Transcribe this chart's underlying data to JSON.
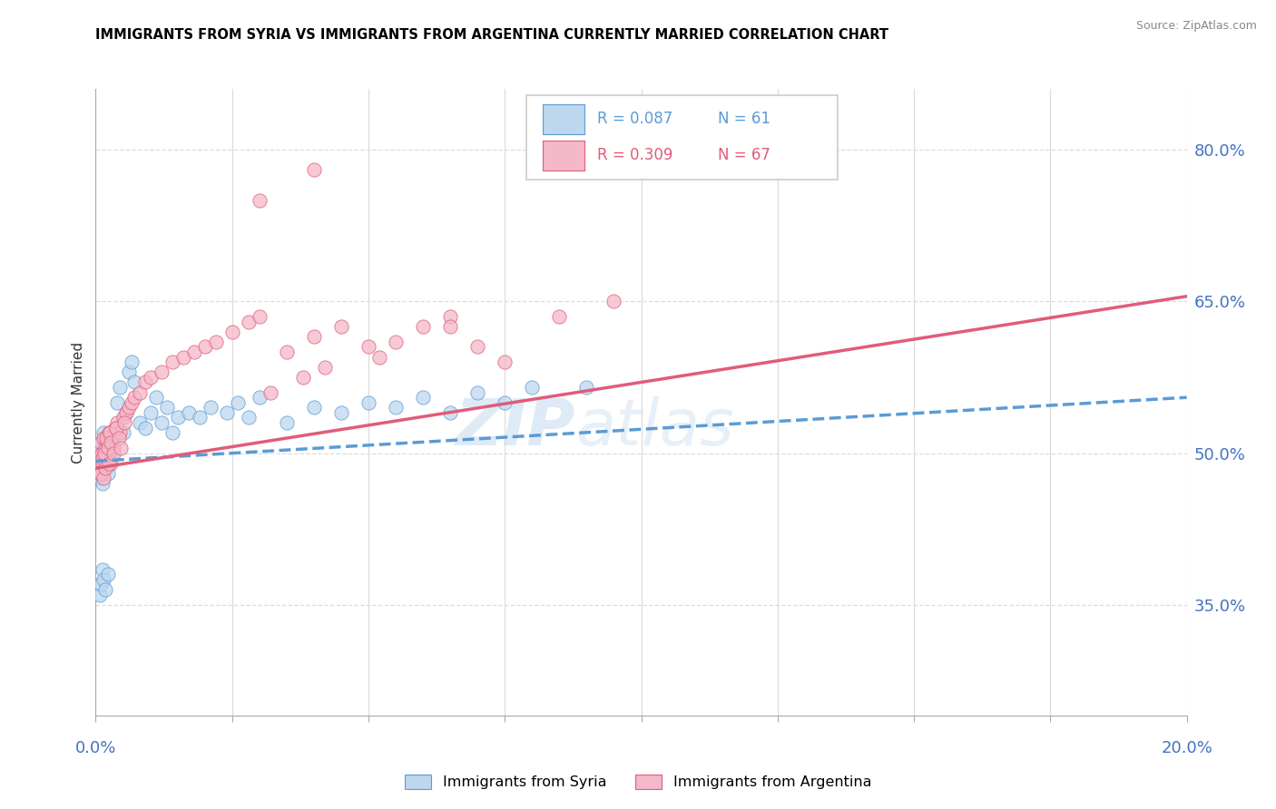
{
  "title": "IMMIGRANTS FROM SYRIA VS IMMIGRANTS FROM ARGENTINA CURRENTLY MARRIED CORRELATION CHART",
  "source": "Source: ZipAtlas.com",
  "ylabel": "Currently Married",
  "right_ytick_values": [
    35.0,
    50.0,
    65.0,
    80.0
  ],
  "xlim": [
    0.0,
    20.0
  ],
  "ylim": [
    24.0,
    86.0
  ],
  "syria_R": 0.087,
  "syria_N": 61,
  "argentina_R": 0.309,
  "argentina_N": 67,
  "syria_color": "#bdd7ee",
  "argentina_color": "#f4b8c8",
  "syria_line_color": "#5b9bd5",
  "argentina_line_color": "#e05c7a",
  "watermark_zip": "ZIP",
  "watermark_atlas": "atlas",
  "legend_label_syria": "Immigrants from Syria",
  "legend_label_argentina": "Immigrants from Argentina",
  "syria_trend_x0": 0.0,
  "syria_trend_y0": 49.2,
  "syria_trend_x1": 20.0,
  "syria_trend_y1": 55.5,
  "argentina_trend_x0": 0.0,
  "argentina_trend_y0": 48.5,
  "argentina_trend_x1": 20.0,
  "argentina_trend_y1": 65.5,
  "syria_x": [
    0.05,
    0.06,
    0.07,
    0.08,
    0.09,
    0.1,
    0.11,
    0.12,
    0.13,
    0.14,
    0.15,
    0.16,
    0.17,
    0.18,
    0.19,
    0.2,
    0.22,
    0.24,
    0.26,
    0.28,
    0.3,
    0.35,
    0.4,
    0.45,
    0.5,
    0.55,
    0.6,
    0.65,
    0.7,
    0.8,
    0.9,
    1.0,
    1.1,
    1.2,
    1.3,
    1.4,
    1.5,
    1.7,
    1.9,
    2.1,
    2.4,
    2.6,
    2.8,
    3.0,
    3.5,
    4.0,
    4.5,
    5.0,
    5.5,
    6.0,
    6.5,
    7.0,
    7.5,
    8.0,
    9.0,
    0.08,
    0.1,
    0.12,
    0.15,
    0.18,
    0.22
  ],
  "syria_y": [
    49.0,
    48.5,
    50.5,
    47.5,
    51.0,
    49.5,
    48.0,
    50.0,
    47.0,
    52.0,
    49.0,
    48.5,
    51.5,
    50.0,
    49.5,
    50.5,
    48.0,
    51.0,
    49.5,
    50.5,
    51.5,
    52.0,
    55.0,
    56.5,
    52.0,
    54.0,
    58.0,
    59.0,
    57.0,
    53.0,
    52.5,
    54.0,
    55.5,
    53.0,
    54.5,
    52.0,
    53.5,
    54.0,
    53.5,
    54.5,
    54.0,
    55.0,
    53.5,
    55.5,
    53.0,
    54.5,
    54.0,
    55.0,
    54.5,
    55.5,
    54.0,
    56.0,
    55.0,
    56.5,
    56.5,
    36.0,
    37.0,
    38.5,
    37.5,
    36.5,
    38.0
  ],
  "argentina_x": [
    0.05,
    0.07,
    0.09,
    0.11,
    0.13,
    0.15,
    0.17,
    0.19,
    0.21,
    0.23,
    0.25,
    0.27,
    0.3,
    0.33,
    0.36,
    0.4,
    0.45,
    0.5,
    0.55,
    0.6,
    0.65,
    0.7,
    0.8,
    0.9,
    1.0,
    1.2,
    1.4,
    1.6,
    1.8,
    2.0,
    2.2,
    2.5,
    2.8,
    3.0,
    3.5,
    4.0,
    4.5,
    5.0,
    5.5,
    6.0,
    6.5,
    7.0,
    0.1,
    0.12,
    0.14,
    0.16,
    0.18,
    0.2,
    0.22,
    0.24,
    0.26,
    0.28,
    0.32,
    0.38,
    0.42,
    0.46,
    0.52,
    3.2,
    3.8,
    4.2,
    5.2,
    6.5,
    7.5,
    8.5,
    9.5,
    3.0,
    4.0
  ],
  "argentina_y": [
    49.5,
    48.0,
    51.0,
    50.0,
    49.0,
    51.5,
    50.5,
    49.5,
    51.0,
    50.0,
    52.0,
    49.0,
    51.5,
    50.5,
    52.5,
    53.0,
    52.0,
    53.5,
    54.0,
    54.5,
    55.0,
    55.5,
    56.0,
    57.0,
    57.5,
    58.0,
    59.0,
    59.5,
    60.0,
    60.5,
    61.0,
    62.0,
    63.0,
    63.5,
    60.0,
    61.5,
    62.5,
    60.5,
    61.0,
    62.5,
    63.5,
    60.5,
    48.0,
    49.5,
    47.5,
    50.0,
    48.5,
    51.5,
    50.5,
    49.0,
    52.0,
    51.0,
    50.0,
    52.5,
    51.5,
    50.5,
    53.0,
    56.0,
    57.5,
    58.5,
    59.5,
    62.5,
    59.0,
    63.5,
    65.0,
    75.0,
    78.0
  ]
}
